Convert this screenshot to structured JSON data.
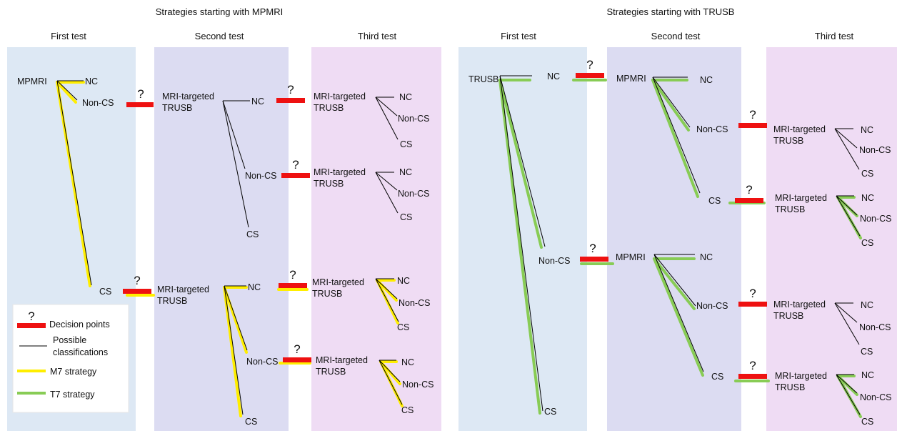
{
  "headers": {
    "mpmri_title": "Strategies starting with MPMRI",
    "trusb_title": "Strategies starting with TRUSB",
    "first_test": "First test",
    "second_test": "Second test",
    "third_test": "Third test"
  },
  "nodes": {
    "mpmri": "MPMRI",
    "trusb": "TRUSB",
    "nc": "NC",
    "non_cs": "Non-CS",
    "cs": "CS",
    "mri_targeted": "MRI-targeted",
    "trusb_short": "TRUSB"
  },
  "question_mark": "?",
  "legend": {
    "decision_points": "Decision points",
    "possible_line1": "Possible",
    "possible_line2": "classifications",
    "m7": "M7 strategy",
    "t7": "T7 strategy"
  },
  "colors": {
    "col_first": "#dde8f4",
    "col_second": "#dcdcf2",
    "col_third": "#efdcf4",
    "decision": "#ee1111",
    "m7": "#ffee00",
    "t7": "#88cc55",
    "line": "#000000"
  }
}
